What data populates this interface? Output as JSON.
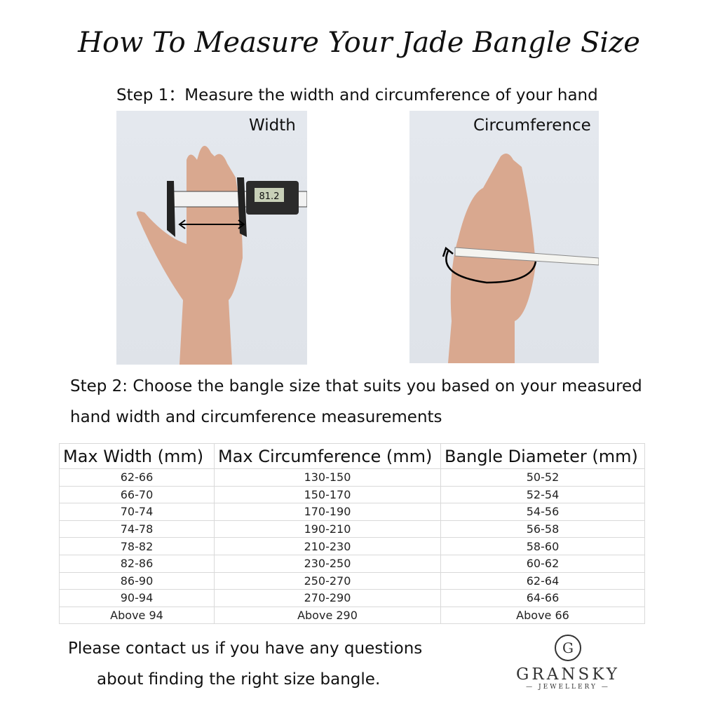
{
  "title": "How To Measure Your Jade Bangle Size",
  "step1": "Step 1：Measure the width and circumference of your hand",
  "photos": [
    {
      "label": "Width",
      "caliper_reading": "81.2"
    },
    {
      "label": "Circumference"
    }
  ],
  "step2": {
    "line1": "Step 2: Choose the bangle size that suits you based on your measured",
    "line2": "hand width and circumference measurements"
  },
  "table": {
    "headers": [
      "Max Width (mm)",
      "Max Circumference (mm)",
      "Bangle Diameter (mm)"
    ],
    "rows": [
      [
        "62-66",
        "130-150",
        "50-52"
      ],
      [
        "66-70",
        "150-170",
        "52-54"
      ],
      [
        "70-74",
        "170-190",
        "54-56"
      ],
      [
        "74-78",
        "190-210",
        "56-58"
      ],
      [
        "78-82",
        "210-230",
        "58-60"
      ],
      [
        "82-86",
        "230-250",
        "60-62"
      ],
      [
        "86-90",
        "250-270",
        "62-64"
      ],
      [
        "90-94",
        "270-290",
        "64-66"
      ],
      [
        "Above 94",
        "Above 290",
        "Above 66"
      ]
    ]
  },
  "contact": {
    "line1": "Please contact us if you have any questions",
    "line2": "about finding the right size bangle."
  },
  "logo": {
    "monogram": "G",
    "brand": "GRANSKY",
    "sub": "JEWELLERY"
  }
}
